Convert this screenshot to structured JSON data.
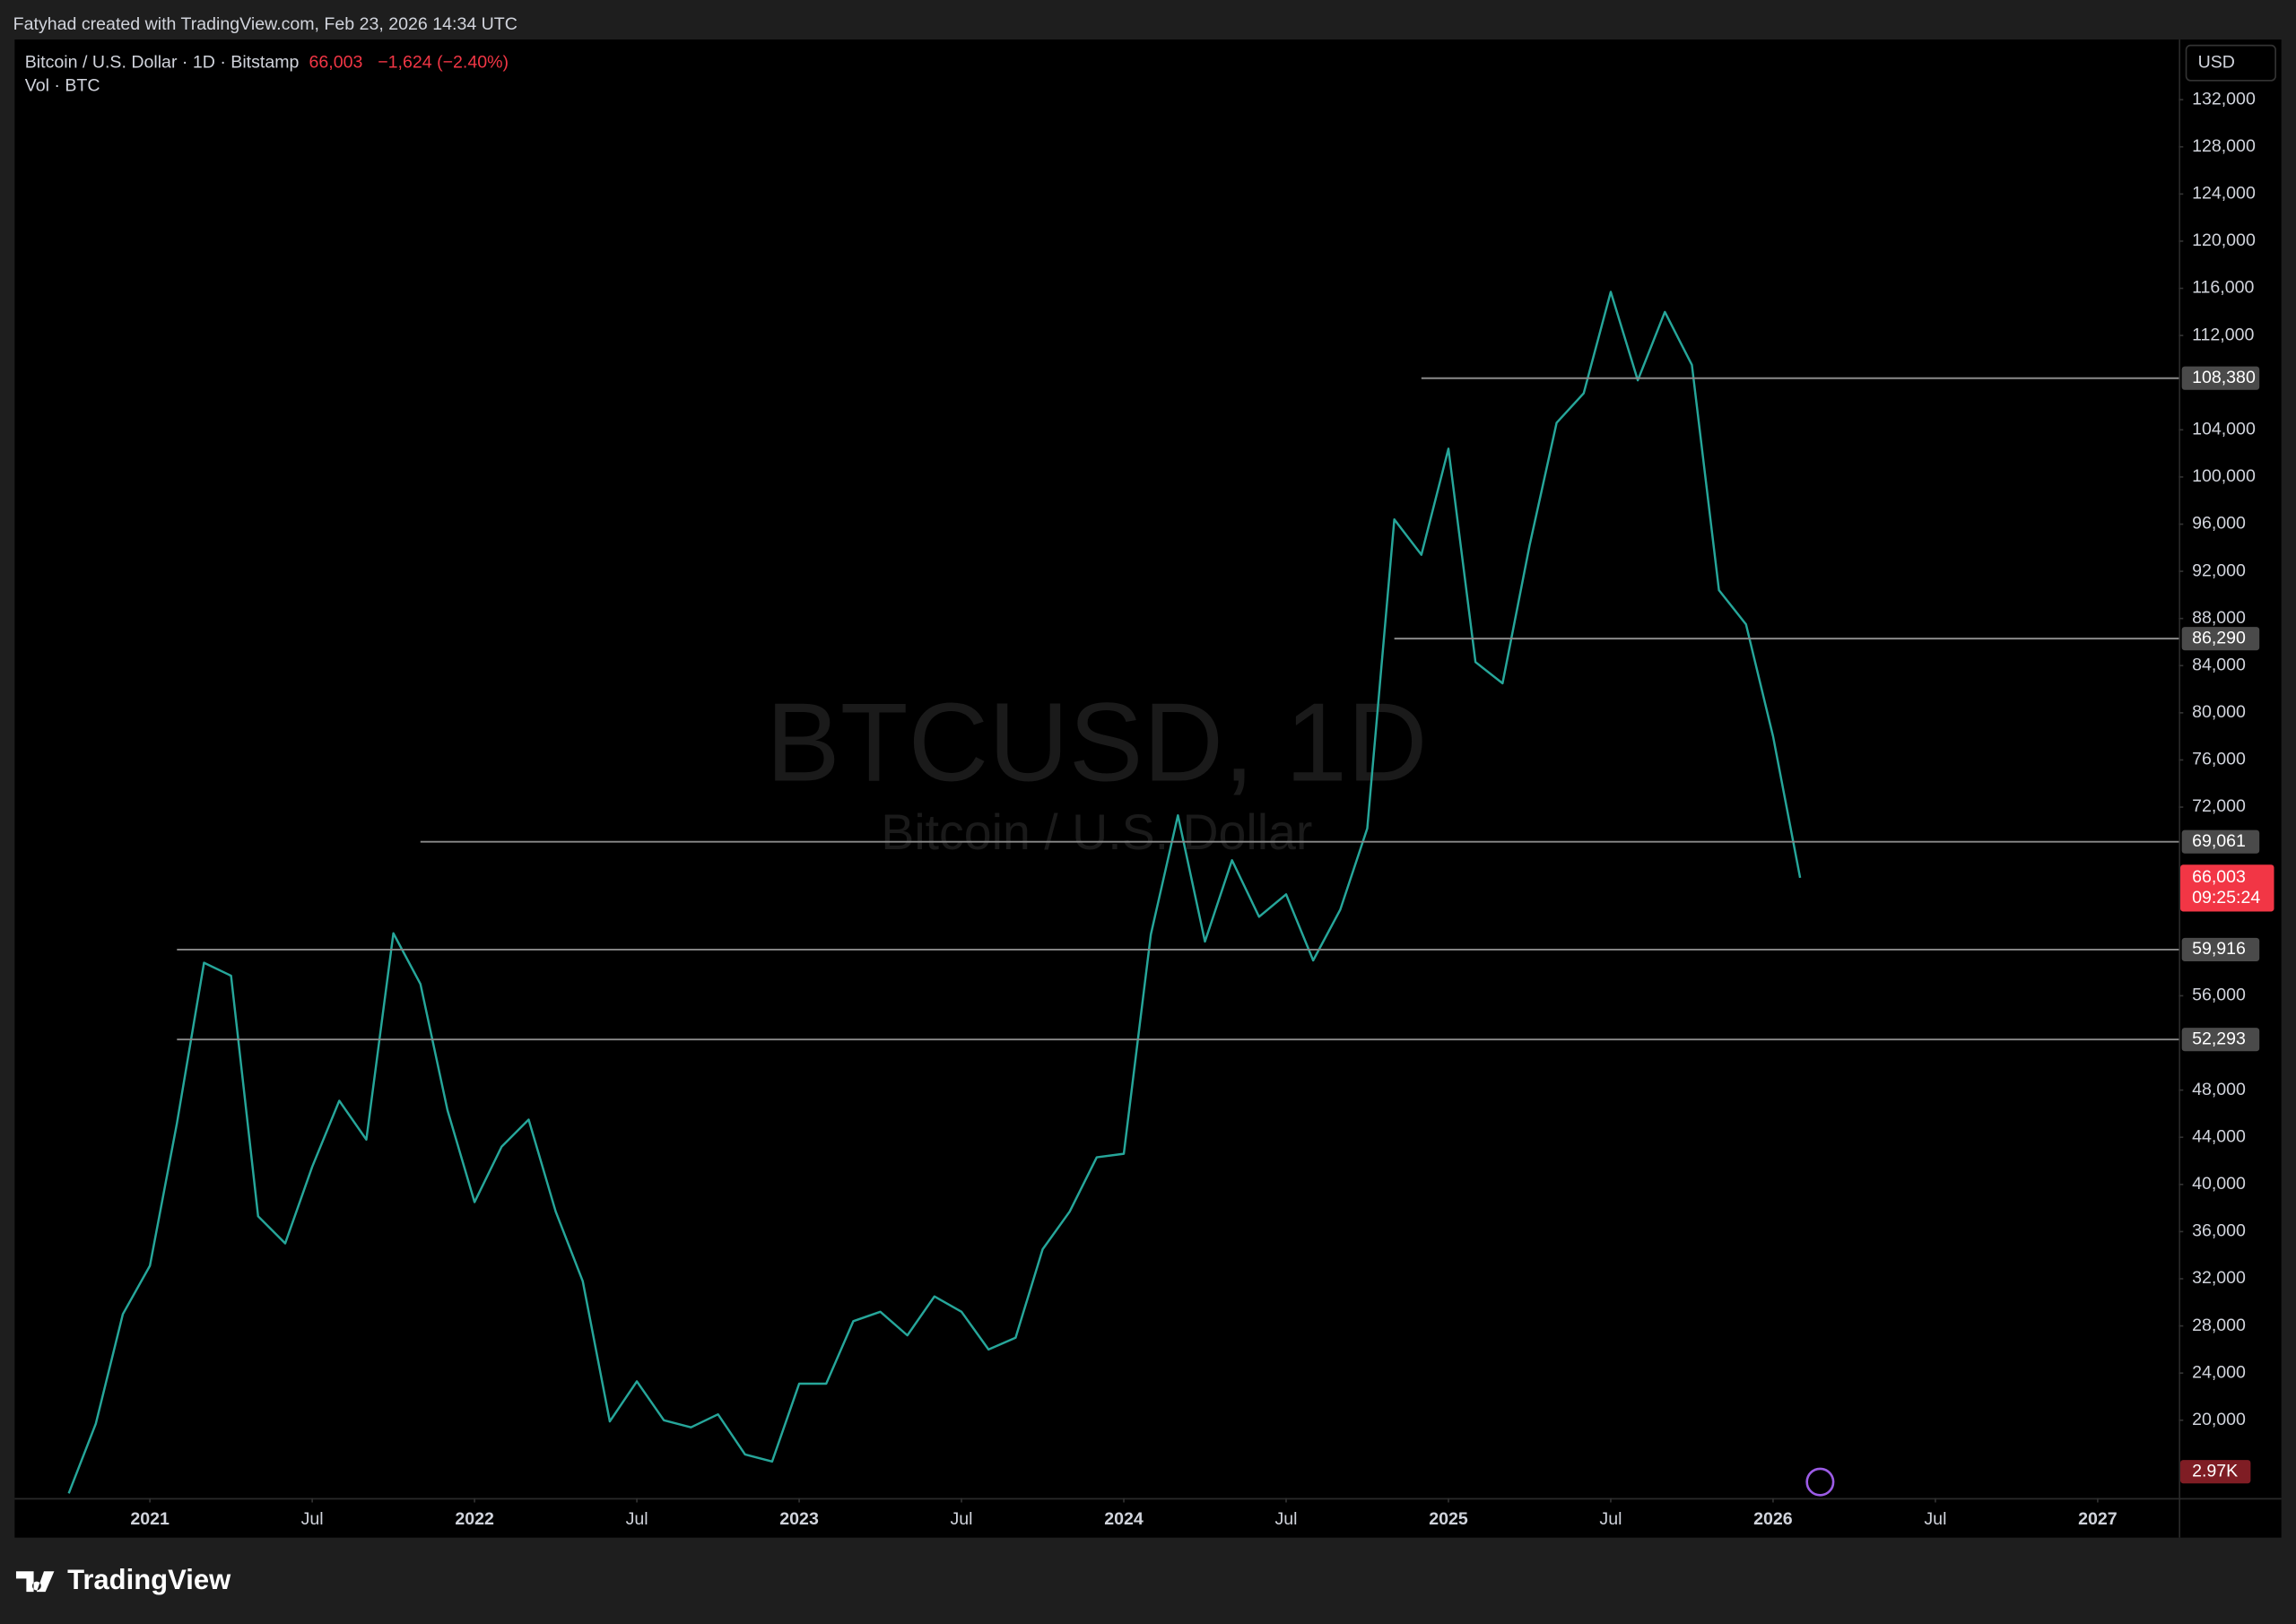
{
  "header": "Fatyhad created with TradingView.com, Feb 23, 2026 14:34 UTC",
  "footer_brand": "TradingView",
  "currency": "USD",
  "chart_data": {
    "type": "line",
    "title": "Bitcoin / U.S. Dollar · 1D · Bitstamp",
    "last_price": {
      "value": 66003,
      "label": "66,003"
    },
    "change": "−1,624 (−2.40%)",
    "countdown": "09:25:24",
    "volume_title": "Vol · BTC",
    "volume_label": "2.97K",
    "watermark": "BTCUSD, 1D",
    "watermark_subtitle": "Bitcoin / U.S. Dollar",
    "grid": false,
    "xlim": [
      "2020-08",
      "2027-04"
    ],
    "ylim": [
      13400,
      137100
    ],
    "xticks": [
      {
        "value": "2021-01",
        "label": "2021"
      },
      {
        "value": "2021-07",
        "label": "Jul"
      },
      {
        "value": "2022-01",
        "label": "2022"
      },
      {
        "value": "2022-07",
        "label": "Jul"
      },
      {
        "value": "2023-01",
        "label": "2023"
      },
      {
        "value": "2023-07",
        "label": "Jul"
      },
      {
        "value": "2024-01",
        "label": "2024"
      },
      {
        "value": "2024-07",
        "label": "Jul"
      },
      {
        "value": "2025-01",
        "label": "2025"
      },
      {
        "value": "2025-07",
        "label": "Jul"
      },
      {
        "value": "2026-01",
        "label": "2026"
      },
      {
        "value": "2026-07",
        "label": "Jul"
      },
      {
        "value": "2027-01",
        "label": "2027"
      }
    ],
    "yticks": [
      {
        "value": 20000,
        "label": "20,000"
      },
      {
        "value": 24000,
        "label": "24,000"
      },
      {
        "value": 28000,
        "label": "28,000"
      },
      {
        "value": 32000,
        "label": "32,000"
      },
      {
        "value": 36000,
        "label": "36,000"
      },
      {
        "value": 40000,
        "label": "40,000"
      },
      {
        "value": 44000,
        "label": "44,000"
      },
      {
        "value": 48000,
        "label": "48,000"
      },
      {
        "value": 56000,
        "label": "56,000"
      },
      {
        "value": 72000,
        "label": "72,000"
      },
      {
        "value": 76000,
        "label": "76,000"
      },
      {
        "value": 80000,
        "label": "80,000"
      },
      {
        "value": 84000,
        "label": "84,000"
      },
      {
        "value": 88000,
        "label": "88,000"
      },
      {
        "value": 92000,
        "label": "92,000"
      },
      {
        "value": 96000,
        "label": "96,000"
      },
      {
        "value": 100000,
        "label": "100,000"
      },
      {
        "value": 104000,
        "label": "104,000"
      },
      {
        "value": 112000,
        "label": "112,000"
      },
      {
        "value": 116000,
        "label": "116,000"
      },
      {
        "value": 120000,
        "label": "120,000"
      },
      {
        "value": 124000,
        "label": "124,000"
      },
      {
        "value": 128000,
        "label": "128,000"
      },
      {
        "value": 132000,
        "label": "132,000"
      }
    ],
    "levels": [
      {
        "value": 108380,
        "label": "108,380",
        "start": "2024-12"
      },
      {
        "value": 86290,
        "label": "86,290",
        "start": "2024-11"
      },
      {
        "value": 69061,
        "label": "69,061",
        "start": "2021-11"
      },
      {
        "value": 59916,
        "label": "59,916",
        "start": "2021-02"
      },
      {
        "value": 52293,
        "label": "52,293",
        "start": "2021-02"
      }
    ],
    "series": [
      {
        "name": "BTCUSD",
        "color": "#26a69a",
        "x": [
          "2020-10",
          "2020-11",
          "2020-12",
          "2021-01",
          "2021-02",
          "2021-03",
          "2021-04",
          "2021-05",
          "2021-06",
          "2021-07",
          "2021-08",
          "2021-09",
          "2021-10",
          "2021-11",
          "2021-12",
          "2022-01",
          "2022-02",
          "2022-03",
          "2022-04",
          "2022-05",
          "2022-06",
          "2022-07",
          "2022-08",
          "2022-09",
          "2022-10",
          "2022-11",
          "2022-12",
          "2023-01",
          "2023-02",
          "2023-03",
          "2023-04",
          "2023-05",
          "2023-06",
          "2023-07",
          "2023-08",
          "2023-09",
          "2023-10",
          "2023-11",
          "2023-12",
          "2024-01",
          "2024-02",
          "2024-03",
          "2024-04",
          "2024-05",
          "2024-06",
          "2024-07",
          "2024-08",
          "2024-09",
          "2024-10",
          "2024-11",
          "2024-12",
          "2025-01",
          "2025-02",
          "2025-03",
          "2025-04",
          "2025-05",
          "2025-06",
          "2025-07",
          "2025-08",
          "2025-09",
          "2025-10",
          "2025-11",
          "2025-12",
          "2026-01",
          "2026-02"
        ],
        "values": [
          13800,
          19700,
          29000,
          33100,
          45200,
          58800,
          57700,
          37300,
          35000,
          41500,
          47100,
          43800,
          61300,
          57000,
          46300,
          38500,
          43200,
          45500,
          37700,
          31800,
          19900,
          23300,
          20000,
          19400,
          20500,
          17100,
          16500,
          23100,
          23100,
          28400,
          29200,
          27200,
          30500,
          29200,
          26000,
          27000,
          34500,
          37700,
          42300,
          42600,
          61200,
          71300,
          60600,
          67500,
          62700,
          64600,
          59000,
          63300,
          70200,
          96400,
          93400,
          102400,
          84300,
          82500,
          94200,
          104600,
          107100,
          115700,
          108200,
          114000,
          109500,
          90400,
          87500,
          78000,
          66003
        ]
      }
    ]
  }
}
